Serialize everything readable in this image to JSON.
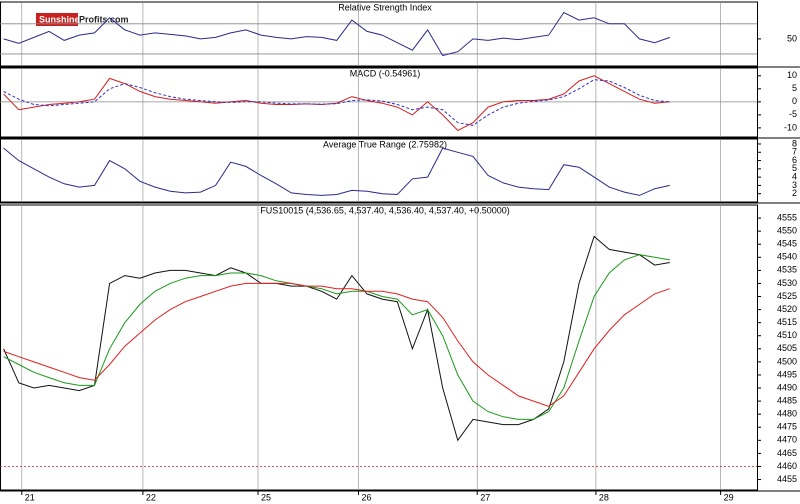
{
  "logo": {
    "brand": "Sunshine",
    "suffix": "Profits.com"
  },
  "chart_data": [
    {
      "type": "line",
      "title": "Relative Strength Index",
      "ylim": [
        14,
        99
      ],
      "yticks": [
        50
      ],
      "levels": [
        30,
        70
      ],
      "level_color": "#888888",
      "xlim": [
        -0.18,
        6.07
      ],
      "xticks": [
        0,
        1,
        1.95,
        2.78,
        3.76,
        4.74,
        5.77
      ],
      "x": [
        -0.15,
        -0.025,
        0.1,
        0.225,
        0.35,
        0.475,
        0.6,
        0.725,
        0.85,
        0.975,
        1.1,
        1.225,
        1.35,
        1.475,
        1.6,
        1.725,
        1.85,
        1.975,
        2.1,
        2.225,
        2.35,
        2.475,
        2.6,
        2.725,
        2.85,
        2.975,
        3.1,
        3.225,
        3.35,
        3.475,
        3.6,
        3.725,
        3.85,
        3.975,
        4.1,
        4.225,
        4.35,
        4.475,
        4.6,
        4.725,
        4.85,
        4.975,
        5.1,
        5.225,
        5.35
      ],
      "series": [
        {
          "name": "RSI",
          "color": "#2a2a8c",
          "values": [
            50,
            44,
            52,
            60,
            48,
            55,
            58,
            78,
            62,
            55,
            58,
            56,
            54,
            50,
            52,
            58,
            62,
            55,
            52,
            50,
            53,
            52,
            48,
            75,
            60,
            55,
            45,
            35,
            62,
            28,
            33,
            50,
            48,
            51,
            49,
            52,
            55,
            85,
            75,
            78,
            70,
            70,
            50,
            45,
            52
          ]
        }
      ]
    },
    {
      "type": "line",
      "title": "MACD (-0.54961)",
      "ylim": [
        -13.5,
        13
      ],
      "yticks": [
        10,
        5,
        0,
        -5,
        -10
      ],
      "levels": [
        0
      ],
      "level_color": "#888888",
      "xlim": [
        -0.18,
        6.07
      ],
      "xticks": [
        0,
        1,
        1.95,
        2.78,
        3.76,
        4.74,
        5.77
      ],
      "x": [
        -0.15,
        -0.025,
        0.1,
        0.225,
        0.35,
        0.475,
        0.6,
        0.725,
        0.85,
        0.975,
        1.1,
        1.225,
        1.35,
        1.475,
        1.6,
        1.725,
        1.85,
        1.975,
        2.1,
        2.225,
        2.35,
        2.475,
        2.6,
        2.725,
        2.85,
        2.975,
        3.1,
        3.225,
        3.35,
        3.475,
        3.6,
        3.725,
        3.85,
        3.975,
        4.1,
        4.225,
        4.35,
        4.475,
        4.6,
        4.725,
        4.85,
        4.975,
        5.1,
        5.225,
        5.35
      ],
      "series": [
        {
          "name": "MACD",
          "color": "#d42020",
          "values": [
            3,
            -3,
            -2,
            -1,
            -0.5,
            0,
            1,
            9,
            7,
            4,
            2,
            1,
            0.5,
            0,
            -0.5,
            0,
            0.5,
            -0.5,
            -1,
            -1,
            -0.8,
            -1,
            -0.5,
            2,
            0.5,
            -0.5,
            -2,
            -5,
            0,
            -5,
            -11,
            -8,
            -2,
            0,
            0.5,
            0.5,
            1,
            3,
            8,
            10,
            7,
            4,
            1,
            -0.5,
            0
          ]
        },
        {
          "name": "Signal",
          "color": "#3030c8",
          "dashed": true,
          "values": [
            4,
            1,
            -1,
            -1.5,
            -1,
            -0.5,
            0,
            5,
            7,
            5.5,
            3.5,
            2,
            1,
            0.5,
            0,
            -0.2,
            0,
            0,
            -0.5,
            -0.8,
            -0.8,
            -0.9,
            -0.7,
            0.5,
            0.8,
            0.3,
            -1,
            -3,
            -2,
            -3,
            -8,
            -9,
            -5,
            -2,
            -0.5,
            0.2,
            0.7,
            2,
            5,
            8.5,
            8,
            5.5,
            2.5,
            0.5,
            0
          ]
        }
      ]
    },
    {
      "type": "line",
      "title": "Average True Range (2.75982)",
      "ylim": [
        1,
        8.6
      ],
      "yticks": [
        8,
        7,
        6,
        5,
        4,
        3,
        2
      ],
      "xlim": [
        -0.18,
        6.07
      ],
      "xticks": [
        0,
        1,
        1.95,
        2.78,
        3.76,
        4.74,
        5.77
      ],
      "x": [
        -0.15,
        -0.025,
        0.1,
        0.225,
        0.35,
        0.475,
        0.6,
        0.725,
        0.85,
        0.975,
        1.1,
        1.225,
        1.35,
        1.475,
        1.6,
        1.725,
        1.85,
        1.975,
        2.1,
        2.225,
        2.35,
        2.475,
        2.6,
        2.725,
        2.85,
        2.975,
        3.1,
        3.225,
        3.35,
        3.475,
        3.6,
        3.725,
        3.85,
        3.975,
        4.1,
        4.225,
        4.35,
        4.475,
        4.6,
        4.725,
        4.85,
        4.975,
        5.1,
        5.225,
        5.35
      ],
      "series": [
        {
          "name": "ATR",
          "color": "#2a2a8c",
          "values": [
            7.5,
            6,
            5,
            4,
            3.2,
            2.8,
            3,
            6,
            5,
            3.5,
            2.8,
            2.3,
            2.1,
            2.2,
            3,
            5.8,
            5.3,
            4.2,
            3.2,
            2.1,
            1.9,
            1.8,
            1.9,
            2.4,
            2.3,
            2,
            1.9,
            3.8,
            4,
            7.5,
            7,
            6.5,
            4.2,
            3.3,
            2.8,
            2.6,
            2.5,
            5.5,
            5.2,
            4,
            2.8,
            2.2,
            1.8,
            2.6,
            3
          ]
        }
      ]
    },
    {
      "type": "line",
      "title": "FUS10015 (4,536.65, 4,537.40, 4,536.40, 4,537.40, +0.50000)",
      "ylim": [
        4451,
        4560
      ],
      "yticks": [
        4555,
        4550,
        4545,
        4540,
        4535,
        4530,
        4525,
        4520,
        4515,
        4510,
        4505,
        4500,
        4495,
        4490,
        4485,
        4480,
        4475,
        4470,
        4465,
        4460,
        4455
      ],
      "levels": [
        4460
      ],
      "level_color": "#cc2020",
      "level_dotted": true,
      "xlim": [
        -0.18,
        6.07
      ],
      "xticks": [
        {
          "value": 0,
          "label": "21"
        },
        {
          "value": 1,
          "label": "22"
        },
        {
          "value": 1.95,
          "label": "25"
        },
        {
          "value": 2.78,
          "label": "26"
        },
        {
          "value": 3.76,
          "label": "27"
        },
        {
          "value": 4.74,
          "label": "28"
        },
        {
          "value": 5.77,
          "label": "29"
        }
      ],
      "x": [
        -0.15,
        -0.025,
        0.1,
        0.225,
        0.35,
        0.475,
        0.6,
        0.725,
        0.85,
        0.975,
        1.1,
        1.225,
        1.35,
        1.475,
        1.6,
        1.725,
        1.85,
        1.975,
        2.1,
        2.225,
        2.35,
        2.475,
        2.6,
        2.725,
        2.85,
        2.975,
        3.1,
        3.225,
        3.35,
        3.475,
        3.6,
        3.725,
        3.85,
        3.975,
        4.1,
        4.225,
        4.35,
        4.475,
        4.6,
        4.725,
        4.85,
        4.975,
        5.1,
        5.225,
        5.35
      ],
      "series": [
        {
          "name": "Price",
          "color": "#111111",
          "values": [
            4505,
            4492,
            4490,
            4491,
            4490,
            4489,
            4491,
            4530,
            4533,
            4532,
            4534,
            4535,
            4535,
            4534,
            4533,
            4536,
            4534,
            4530,
            4530,
            4529,
            4529,
            4527,
            4524,
            4533,
            4526,
            4524,
            4523,
            4505,
            4520,
            4490,
            4470,
            4478,
            4477,
            4476,
            4476,
            4478,
            4482,
            4500,
            4530,
            4548,
            4543,
            4542,
            4541,
            4537,
            4538
          ]
        },
        {
          "name": "MA fast",
          "color": "#1a9a1a",
          "values": [
            4502,
            4499,
            4496,
            4494,
            4492,
            4491,
            4491,
            4505,
            4515,
            4522,
            4527,
            4530,
            4532,
            4533,
            4533,
            4534,
            4534,
            4533,
            4531,
            4530,
            4529,
            4528,
            4526,
            4527,
            4527,
            4525,
            4524,
            4518,
            4520,
            4510,
            4495,
            4485,
            4481,
            4479,
            4478,
            4478,
            4481,
            4490,
            4508,
            4525,
            4534,
            4539,
            4541,
            4540,
            4539
          ]
        },
        {
          "name": "MA slow",
          "color": "#e02020",
          "values": [
            4504,
            4502,
            4500,
            4498,
            4496,
            4494,
            4493,
            4499,
            4506,
            4511,
            4516,
            4520,
            4523,
            4525,
            4527,
            4529,
            4530,
            4530,
            4530,
            4530,
            4529,
            4529,
            4528,
            4528,
            4527,
            4527,
            4526,
            4524,
            4523,
            4517,
            4508,
            4500,
            4495,
            4491,
            4487,
            4485,
            4483,
            4487,
            4496,
            4505,
            4512,
            4518,
            4522,
            4526,
            4528
          ]
        }
      ]
    }
  ]
}
